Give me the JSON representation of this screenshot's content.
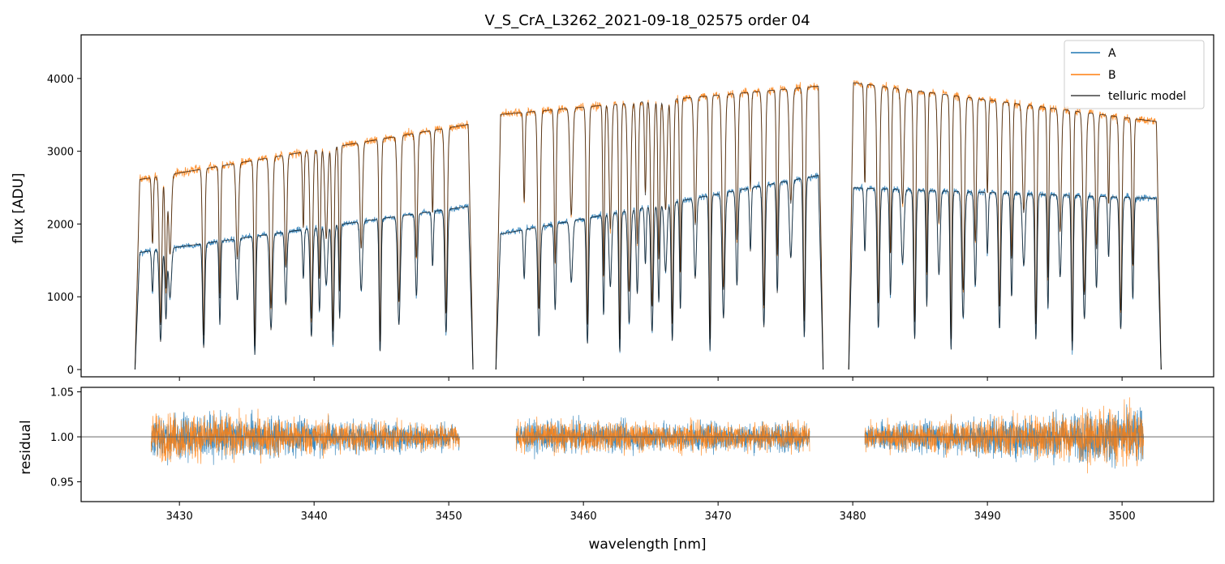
{
  "chart_data": [
    {
      "panel": "top",
      "type": "line",
      "title": "V_S_CrA_L3262_2021-09-18_02575  order 04",
      "xlabel": "",
      "ylabel": "flux [ADU]",
      "xlim": [
        3422.7,
        3506.8
      ],
      "ylim": [
        -100,
        4600
      ],
      "xticks": [
        3430,
        3440,
        3450,
        3460,
        3470,
        3480,
        3490,
        3500
      ],
      "yticks": [
        0,
        1000,
        2000,
        3000,
        4000
      ],
      "ytick_labels": [
        "0",
        "1000",
        "2000",
        "3000",
        "4000"
      ],
      "legend": {
        "position": "top-right",
        "entries": [
          {
            "label": "A",
            "color": "#1f77b4"
          },
          {
            "label": "B",
            "color": "#ff7f0e"
          },
          {
            "label": "telluric model",
            "color": "#404040"
          }
        ]
      },
      "segments": [
        {
          "x_range": [
            3426.7,
            3451.8
          ],
          "A_level_start": 1600,
          "A_level_end": 2250,
          "B_level_start": 2600,
          "B_level_end": 3380,
          "absorption_lines": [
            3428.0,
            3428.6,
            3429.0,
            3429.3,
            3431.8,
            3433.0,
            3434.3,
            3435.6,
            3436.8,
            3437.9,
            3439.2,
            3439.8,
            3440.4,
            3440.9,
            3441.4,
            3441.9,
            3443.5,
            3444.9,
            3446.3,
            3447.6,
            3448.8,
            3449.8
          ]
        },
        {
          "x_range": [
            3453.5,
            3477.8
          ],
          "A_level_start": 1850,
          "A_level_end": 2680,
          "B_level_start": 3500,
          "B_level_end": 3900,
          "absorption_lines": [
            3455.6,
            3456.7,
            3457.9,
            3459.1,
            3460.3,
            3461.5,
            3462.0,
            3462.7,
            3463.4,
            3464.0,
            3464.6,
            3465.1,
            3465.6,
            3466.1,
            3466.6,
            3467.2,
            3468.3,
            3469.4,
            3470.4,
            3471.4,
            3472.4,
            3473.4,
            3474.4,
            3475.4,
            3476.4
          ]
        },
        {
          "x_range": [
            3479.7,
            3502.9
          ],
          "A_level_start": 2500,
          "A_level_end": 2350,
          "B_level_start": 3950,
          "B_level_end": 3400,
          "absorption_lines": [
            3480.9,
            3481.9,
            3482.8,
            3483.7,
            3484.6,
            3485.5,
            3486.4,
            3487.3,
            3488.2,
            3489.1,
            3490.0,
            3490.9,
            3491.8,
            3492.7,
            3493.6,
            3494.5,
            3495.4,
            3496.3,
            3497.2,
            3498.1,
            3499.0,
            3499.9,
            3500.8
          ]
        }
      ]
    },
    {
      "panel": "bottom",
      "type": "line",
      "title": "",
      "xlabel": "wavelength [nm]",
      "ylabel": "residual",
      "xlim": [
        3422.7,
        3506.8
      ],
      "ylim": [
        0.928,
        1.055
      ],
      "xticks": [
        3430,
        3440,
        3450,
        3460,
        3470,
        3480,
        3490,
        3500
      ],
      "xtick_labels": [
        "3430",
        "3440",
        "3450",
        "3460",
        "3470",
        "3480",
        "3490",
        "3500"
      ],
      "yticks": [
        0.95,
        1.0,
        1.05
      ],
      "ytick_labels": [
        "0.95",
        "1.00",
        "1.05"
      ],
      "reference_line": 1.0,
      "segments": [
        {
          "x_range": [
            3427.9,
            3450.8
          ],
          "noise_amplitude_start": 0.035,
          "noise_amplitude_end": 0.018
        },
        {
          "x_range": [
            3455.0,
            3476.8
          ],
          "noise_amplitude_start": 0.022,
          "noise_amplitude_end": 0.02
        },
        {
          "x_range": [
            3480.9,
            3501.6
          ],
          "noise_amplitude_start": 0.018,
          "noise_amplitude_end": 0.04
        }
      ]
    }
  ]
}
